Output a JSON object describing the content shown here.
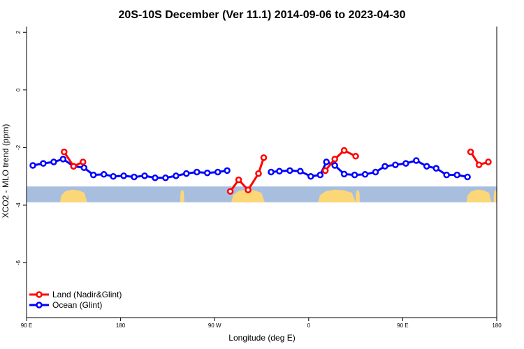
{
  "chart_data": {
    "type": "line",
    "title": "20S-10S December (Ver 11.1)   2014-09-06 to 2023-04-30",
    "xlabel": "Longitude (deg E)",
    "ylabel": "XCO2 - MLO trend (ppm)",
    "x_ticks": [
      {
        "value": 90,
        "label": "90 E"
      },
      {
        "value": 180,
        "label": "180"
      },
      {
        "value": 270,
        "label": "90 W"
      },
      {
        "value": 360,
        "label": "0"
      },
      {
        "value": 450,
        "label": "90 E"
      },
      {
        "value": 540,
        "label": "180"
      }
    ],
    "y_ticks": [
      {
        "value": 2,
        "label": "2"
      },
      {
        "value": 0,
        "label": "0"
      },
      {
        "value": -2,
        "label": "-2"
      },
      {
        "value": -4,
        "label": "-4"
      },
      {
        "value": -6,
        "label": "-6"
      }
    ],
    "xlim": [
      90,
      540
    ],
    "ylim": [
      -7.9,
      2.2
    ],
    "grid": false,
    "legend_position": "bottom-left",
    "map_strip": {
      "ymin": -3.9,
      "ymax": -3.35,
      "ocean_color": "#a8bedf",
      "land_color": "#fcd777"
    },
    "series": [
      {
        "name": "Land (Nadir&Glint)",
        "color": "#ff0000",
        "segments": [
          [
            [
              126,
              -2.15
            ],
            [
              135,
              -2.65
            ],
            [
              144,
              -2.5
            ]
          ],
          [
            [
              285,
              -3.52
            ],
            [
              293,
              -3.12
            ],
            [
              302,
              -3.47
            ],
            [
              312,
              -2.9
            ],
            [
              317,
              -2.35
            ]
          ],
          [
            [
              376,
              -2.8
            ],
            [
              385,
              -2.4
            ],
            [
              394,
              -2.1
            ],
            [
              405,
              -2.3
            ]
          ],
          [
            [
              515,
              -2.15
            ],
            [
              523,
              -2.6
            ],
            [
              532,
              -2.5
            ]
          ]
        ]
      },
      {
        "name": "Ocean (Glint)",
        "color": "#0000ff",
        "segments": [
          [
            [
              96,
              -2.62
            ],
            [
              106,
              -2.55
            ],
            [
              116,
              -2.5
            ],
            [
              125,
              -2.4
            ],
            [
              135,
              -2.65
            ],
            [
              145,
              -2.7
            ],
            [
              154,
              -2.95
            ],
            [
              164,
              -2.93
            ],
            [
              173,
              -3.0
            ],
            [
              183,
              -2.98
            ],
            [
              193,
              -3.02
            ],
            [
              203,
              -2.98
            ],
            [
              213,
              -3.05
            ],
            [
              223,
              -3.05
            ],
            [
              233,
              -2.98
            ],
            [
              243,
              -2.9
            ],
            [
              253,
              -2.85
            ],
            [
              263,
              -2.88
            ],
            [
              273,
              -2.85
            ],
            [
              282,
              -2.8
            ]
          ],
          [
            [
              324,
              -2.85
            ],
            [
              332,
              -2.82
            ],
            [
              342,
              -2.8
            ],
            [
              352,
              -2.82
            ],
            [
              362,
              -3.0
            ],
            [
              371,
              -2.95
            ],
            [
              377,
              -2.5
            ],
            [
              385,
              -2.62
            ],
            [
              394,
              -2.92
            ],
            [
              404,
              -2.95
            ],
            [
              414,
              -2.93
            ],
            [
              424,
              -2.85
            ],
            [
              433,
              -2.65
            ],
            [
              443,
              -2.6
            ],
            [
              453,
              -2.55
            ],
            [
              463,
              -2.45
            ],
            [
              473,
              -2.65
            ],
            [
              482,
              -2.72
            ],
            [
              492,
              -2.95
            ],
            [
              502,
              -2.95
            ],
            [
              512,
              -3.02
            ]
          ]
        ]
      }
    ]
  }
}
